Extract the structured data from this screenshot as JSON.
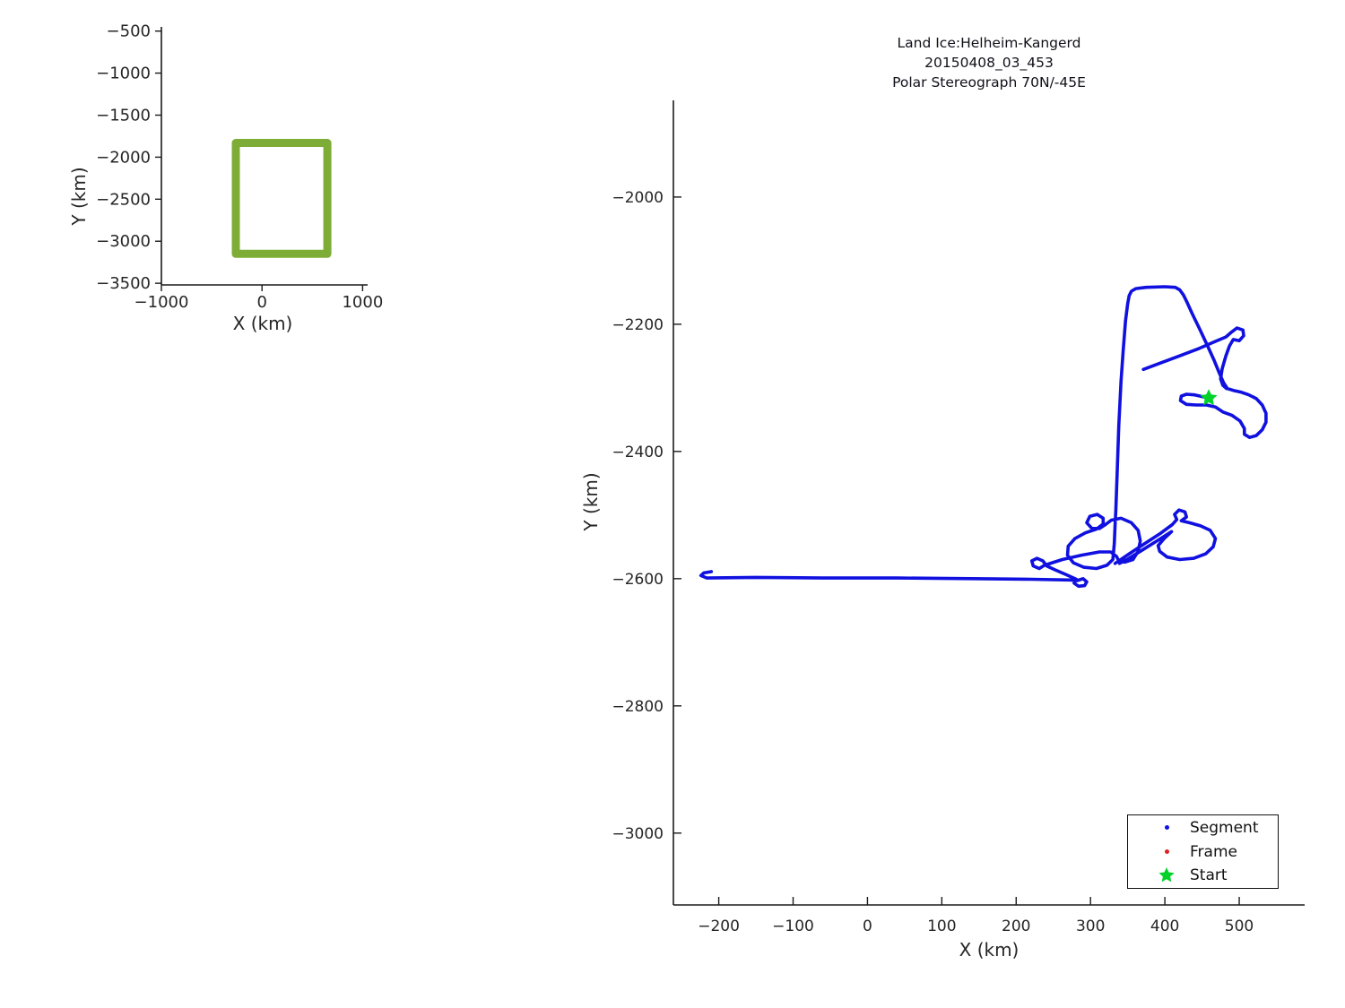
{
  "figure": {
    "background": "#ffffff"
  },
  "main_title": {
    "lines": [
      "Land Ice:Helheim-Kangerd",
      "20150408_03_453",
      "Polar Stereograph 70N/-45E"
    ]
  },
  "legend": {
    "items": [
      {
        "label": "Segment",
        "marker": "dot",
        "color": "#1010e0"
      },
      {
        "label": "Frame",
        "marker": "dot",
        "color": "#e02020"
      },
      {
        "label": "Start",
        "marker": "star",
        "color": "#00d22a"
      }
    ]
  },
  "chart_data": [
    {
      "id": "overview",
      "type": "line",
      "title": "",
      "xlabel": "X (km)",
      "ylabel": "Y (km)",
      "xticks": [
        -1000,
        0,
        1000
      ],
      "yticks": [
        -500,
        -1000,
        -1500,
        -2000,
        -2500,
        -3000,
        -3500
      ],
      "xlim": [
        -1000,
        1050
      ],
      "ylim": [
        -3520,
        -450
      ],
      "grid": false,
      "series": [
        {
          "name": "coverage-box-outline",
          "color": "#7dad36",
          "width": 9,
          "closed": true,
          "points": [
            [
              -260,
              -1830
            ],
            [
              650,
              -1830
            ],
            [
              650,
              -3150
            ],
            [
              -260,
              -3150
            ]
          ]
        }
      ]
    },
    {
      "id": "main",
      "type": "line",
      "title": "Land Ice:Helheim-Kangerd 20150408_03_453 Polar Stereograph 70N/-45E",
      "xlabel": "X (km)",
      "ylabel": "Y (km)",
      "xticks": [
        -200,
        -100,
        0,
        100,
        200,
        300,
        400,
        500
      ],
      "yticks": [
        -2000,
        -2200,
        -2400,
        -2600,
        -2800,
        -3000
      ],
      "xlim": [
        -261,
        588
      ],
      "ylim": [
        -3113,
        -1848
      ],
      "grid": false,
      "legend_position": "lower right",
      "series": [
        {
          "name": "segment-track-main",
          "color": "#1010e0",
          "width": 3.6,
          "closed": false,
          "points": [
            [
              -210,
              -2589
            ],
            [
              -220,
              -2591
            ],
            [
              -224,
              -2595
            ],
            [
              -216,
              -2599
            ],
            [
              -150,
              -2598
            ],
            [
              -60,
              -2599
            ],
            [
              40,
              -2599
            ],
            [
              140,
              -2600
            ],
            [
              220,
              -2601
            ],
            [
              272,
              -2602
            ],
            [
              282,
              -2603
            ],
            [
              290,
              -2600
            ],
            [
              295,
              -2605
            ],
            [
              292,
              -2611
            ],
            [
              284,
              -2612
            ],
            [
              278,
              -2607
            ],
            [
              281,
              -2601
            ],
            [
              268,
              -2594
            ],
            [
              252,
              -2586
            ],
            [
              241,
              -2580
            ],
            [
              236,
              -2572
            ],
            [
              228,
              -2568
            ],
            [
              221,
              -2572
            ],
            [
              223,
              -2580
            ],
            [
              231,
              -2584
            ],
            [
              238,
              -2579
            ],
            [
              262,
              -2570
            ],
            [
              288,
              -2563
            ],
            [
              312,
              -2558
            ],
            [
              327,
              -2558
            ],
            [
              335,
              -2565
            ],
            [
              338,
              -2572
            ],
            [
              346,
              -2574
            ],
            [
              357,
              -2570
            ],
            [
              364,
              -2557
            ],
            [
              367,
              -2541
            ],
            [
              364,
              -2524
            ],
            [
              355,
              -2512
            ],
            [
              341,
              -2505
            ],
            [
              328,
              -2508
            ],
            [
              320,
              -2515
            ],
            [
              312,
              -2521
            ],
            [
              302,
              -2521
            ],
            [
              295,
              -2512
            ],
            [
              299,
              -2502
            ],
            [
              309,
              -2499
            ],
            [
              317,
              -2505
            ],
            [
              317,
              -2514
            ],
            [
              308,
              -2522
            ],
            [
              293,
              -2528
            ],
            [
              279,
              -2537
            ],
            [
              270,
              -2549
            ],
            [
              269,
              -2563
            ],
            [
              277,
              -2575
            ],
            [
              291,
              -2582
            ],
            [
              308,
              -2584
            ],
            [
              322,
              -2579
            ],
            [
              330,
              -2570
            ],
            [
              332,
              -2545
            ],
            [
              333,
              -2515
            ],
            [
              334,
              -2493
            ],
            [
              336,
              -2430
            ],
            [
              338,
              -2360
            ],
            [
              341,
              -2290
            ],
            [
              344,
              -2240
            ],
            [
              347,
              -2195
            ],
            [
              350,
              -2168
            ],
            [
              352,
              -2155
            ],
            [
              355,
              -2148
            ],
            [
              361,
              -2144
            ],
            [
              375,
              -2142
            ],
            [
              400,
              -2141
            ],
            [
              414,
              -2142
            ],
            [
              420,
              -2146
            ],
            [
              425,
              -2154
            ],
            [
              430,
              -2166
            ],
            [
              437,
              -2184
            ],
            [
              447,
              -2208
            ],
            [
              457,
              -2233
            ],
            [
              466,
              -2256
            ],
            [
              473,
              -2276
            ],
            [
              479,
              -2292
            ],
            [
              484,
              -2301
            ],
            [
              492,
              -2304
            ],
            [
              503,
              -2307
            ],
            [
              513,
              -2311
            ],
            [
              523,
              -2317
            ],
            [
              531,
              -2327
            ],
            [
              536,
              -2340
            ],
            [
              536,
              -2354
            ],
            [
              531,
              -2366
            ],
            [
              523,
              -2375
            ],
            [
              514,
              -2378
            ],
            [
              507,
              -2373
            ],
            [
              507,
              -2364
            ],
            [
              501,
              -2352
            ],
            [
              490,
              -2343
            ],
            [
              478,
              -2338
            ],
            [
              468,
              -2330
            ],
            [
              456,
              -2327
            ],
            [
              442,
              -2327
            ],
            [
              429,
              -2326
            ],
            [
              421,
              -2320
            ],
            [
              422,
              -2313
            ],
            [
              429,
              -2310
            ],
            [
              440,
              -2311
            ],
            [
              451,
              -2314
            ],
            [
              458,
              -2316
            ]
          ]
        },
        {
          "name": "segment-track-east-loops",
          "color": "#1010e0",
          "width": 3.6,
          "closed": false,
          "points": [
            [
              333,
              -2576
            ],
            [
              352,
              -2561
            ],
            [
              374,
              -2544
            ],
            [
              395,
              -2528
            ],
            [
              410,
              -2515
            ],
            [
              416,
              -2507
            ],
            [
              413,
              -2499
            ],
            [
              419,
              -2492
            ],
            [
              427,
              -2495
            ],
            [
              429,
              -2503
            ],
            [
              422,
              -2509
            ],
            [
              433,
              -2512
            ],
            [
              448,
              -2517
            ],
            [
              461,
              -2524
            ],
            [
              468,
              -2537
            ],
            [
              465,
              -2550
            ],
            [
              455,
              -2561
            ],
            [
              439,
              -2568
            ],
            [
              420,
              -2570
            ],
            [
              403,
              -2566
            ],
            [
              393,
              -2557
            ],
            [
              391,
              -2548
            ],
            [
              399,
              -2537
            ],
            [
              409,
              -2526
            ],
            [
              389,
              -2541
            ],
            [
              367,
              -2557
            ],
            [
              349,
              -2570
            ],
            [
              339,
              -2576
            ]
          ]
        },
        {
          "name": "segment-track-cross-diagonal",
          "color": "#1010e0",
          "width": 3.6,
          "closed": false,
          "points": [
            [
              371,
              -2271
            ],
            [
              394,
              -2261
            ],
            [
              419,
              -2250
            ],
            [
              446,
              -2238
            ],
            [
              468,
              -2227
            ],
            [
              482,
              -2220
            ],
            [
              489,
              -2213
            ],
            [
              497,
              -2206
            ],
            [
              505,
              -2209
            ],
            [
              506,
              -2218
            ],
            [
              500,
              -2226
            ],
            [
              492,
              -2224
            ],
            [
              487,
              -2234
            ],
            [
              482,
              -2250
            ],
            [
              477,
              -2270
            ],
            [
              475,
              -2286
            ],
            [
              478,
              -2296
            ],
            [
              483,
              -2301
            ]
          ]
        }
      ],
      "start_marker": {
        "x": 459,
        "y": -2316,
        "color": "#00d22a",
        "size": 10
      }
    }
  ]
}
